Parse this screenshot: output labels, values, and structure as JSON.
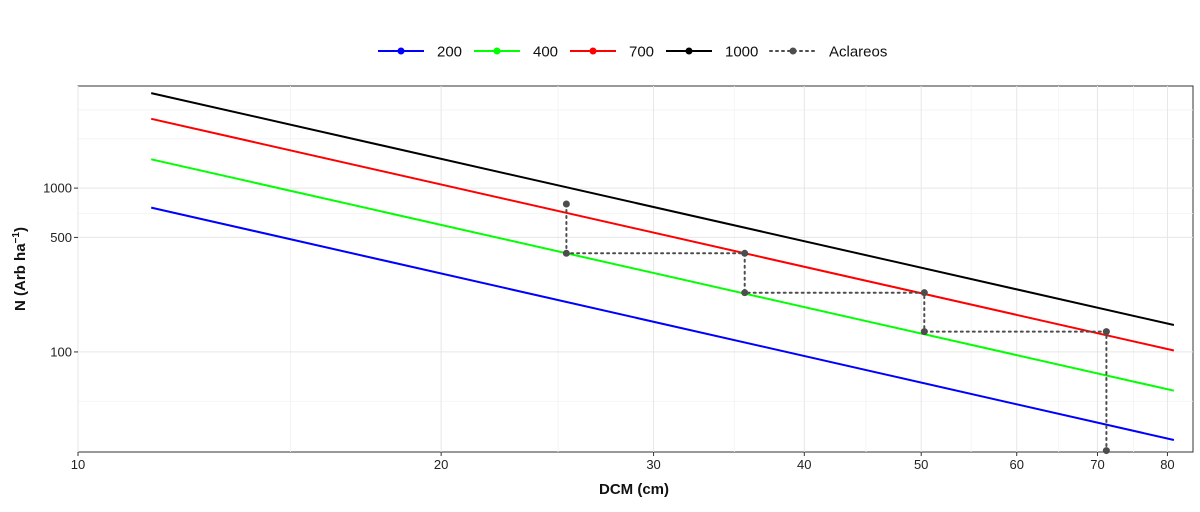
{
  "chart_data": {
    "type": "line",
    "xlabel": "DCM (cm)",
    "ylabel_base": "N (Arb ha",
    "ylabel_sup": "−1",
    "ylabel_close": ")",
    "x_scale": "log",
    "y_scale": "log",
    "xlim": [
      10,
      84
    ],
    "ylim": [
      24.5,
      4200
    ],
    "x_ticks": [
      10,
      20,
      30,
      40,
      50,
      60,
      70,
      80
    ],
    "x_tick_labels": [
      "10",
      "20",
      "30",
      "40",
      "50",
      "60",
      "70",
      "80"
    ],
    "x_minor_ticks": [
      15,
      25,
      35,
      45,
      55,
      65,
      75
    ],
    "y_ticks": [
      100,
      500,
      1000
    ],
    "y_tick_labels": [
      "100",
      "500",
      "1000"
    ],
    "y_minor_ticks": [
      50,
      700,
      2000,
      3000
    ],
    "grid": true,
    "legend_position": "top",
    "series": [
      {
        "name": "200",
        "color": "#0000ff",
        "x": [
          11.5,
          81
        ],
        "y": [
          760,
          29
        ]
      },
      {
        "name": "400",
        "color": "#00ff00",
        "x": [
          11.5,
          81
        ],
        "y": [
          1500,
          58
        ]
      },
      {
        "name": "700",
        "color": "#ff0000",
        "x": [
          11.5,
          81
        ],
        "y": [
          2650,
          102
        ]
      },
      {
        "name": "1000",
        "color": "#000000",
        "x": [
          11.5,
          81
        ],
        "y": [
          3800,
          146
        ]
      }
    ],
    "thinning": {
      "name": "Aclareos",
      "color": "#4d4d4d",
      "x": [
        25.4,
        25.4,
        35.7,
        35.7,
        50.3,
        50.3,
        71.2,
        71.2
      ],
      "y": [
        800,
        400,
        400,
        230,
        230,
        133,
        133,
        25
      ]
    }
  }
}
